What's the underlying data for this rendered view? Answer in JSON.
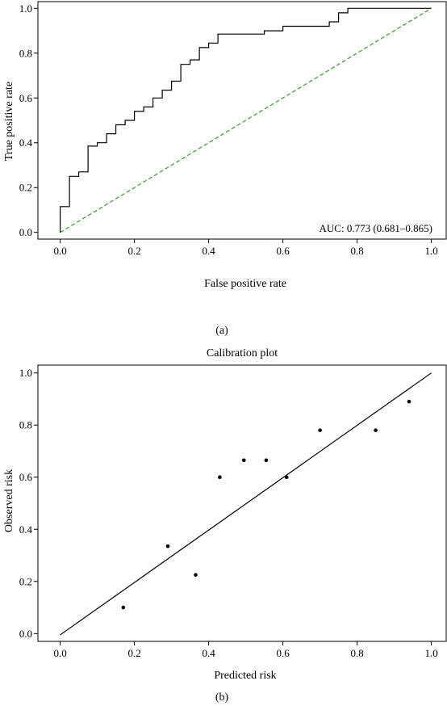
{
  "chart_data": [
    {
      "type": "line",
      "panel_label": "(a)",
      "title": "",
      "xlabel": "False positive rate",
      "ylabel": "True positive rate",
      "xlim": [
        -0.06,
        1.04
      ],
      "ylim": [
        -0.03,
        1.03
      ],
      "xticks": [
        0.0,
        0.2,
        0.4,
        0.6,
        0.8,
        1.0
      ],
      "yticks": [
        0.0,
        0.2,
        0.4,
        0.6,
        0.8,
        1.0
      ],
      "xtick_labels": [
        "0.0",
        "0.2",
        "0.4",
        "0.6",
        "0.8",
        "1.0"
      ],
      "ytick_labels": [
        "0.0",
        "0.2",
        "0.4",
        "0.6",
        "0.8",
        "1.0"
      ],
      "grid": false,
      "annotation": "AUC: 0.773 (0.681–0.865)",
      "series": [
        {
          "style": "step",
          "color": "#000000",
          "x": [
            0.0,
            0.0,
            0.025,
            0.025,
            0.05,
            0.05,
            0.075,
            0.075,
            0.1,
            0.1,
            0.125,
            0.125,
            0.15,
            0.15,
            0.175,
            0.175,
            0.2,
            0.2,
            0.225,
            0.225,
            0.25,
            0.25,
            0.275,
            0.275,
            0.3,
            0.3,
            0.325,
            0.325,
            0.35,
            0.35,
            0.375,
            0.375,
            0.4,
            0.4,
            0.425,
            0.425,
            0.55,
            0.55,
            0.6,
            0.6,
            0.725,
            0.725,
            0.75,
            0.75,
            0.775,
            0.775,
            1.0
          ],
          "y": [
            0.0,
            0.115,
            0.115,
            0.25,
            0.25,
            0.27,
            0.27,
            0.385,
            0.385,
            0.4,
            0.4,
            0.44,
            0.44,
            0.48,
            0.48,
            0.5,
            0.5,
            0.54,
            0.54,
            0.56,
            0.56,
            0.6,
            0.6,
            0.635,
            0.635,
            0.675,
            0.675,
            0.75,
            0.75,
            0.77,
            0.77,
            0.825,
            0.825,
            0.845,
            0.845,
            0.885,
            0.885,
            0.9,
            0.9,
            0.92,
            0.92,
            0.94,
            0.94,
            0.98,
            0.98,
            1.0,
            1.0
          ]
        },
        {
          "style": "dashed",
          "color": "#3a9a2a",
          "x": [
            0.0,
            1.0
          ],
          "y": [
            0.0,
            1.0
          ]
        }
      ]
    },
    {
      "type": "scatter",
      "panel_label": "(b)",
      "title": "Calibration plot",
      "xlabel": "Predicted risk",
      "ylabel": "Observed risk",
      "xlim": [
        -0.06,
        1.04
      ],
      "ylim": [
        -0.03,
        1.03
      ],
      "xticks": [
        0.0,
        0.2,
        0.4,
        0.6,
        0.8,
        1.0
      ],
      "yticks": [
        0.0,
        0.2,
        0.4,
        0.6,
        0.8,
        1.0
      ],
      "xtick_labels": [
        "0.0",
        "0.2",
        "0.4",
        "0.6",
        "0.8",
        "1.0"
      ],
      "ytick_labels": [
        "0.0",
        "0.2",
        "0.4",
        "0.6",
        "0.8",
        "1.0"
      ],
      "grid": false,
      "points": {
        "x": [
          0.17,
          0.29,
          0.365,
          0.43,
          0.495,
          0.555,
          0.61,
          0.7,
          0.85,
          0.94
        ],
        "y": [
          0.1,
          0.335,
          0.225,
          0.6,
          0.665,
          0.665,
          0.6,
          0.78,
          0.78,
          0.89
        ]
      },
      "reference_line": {
        "x": [
          0.0,
          1.0
        ],
        "y": [
          -0.005,
          1.0
        ],
        "color": "#000000"
      }
    }
  ]
}
